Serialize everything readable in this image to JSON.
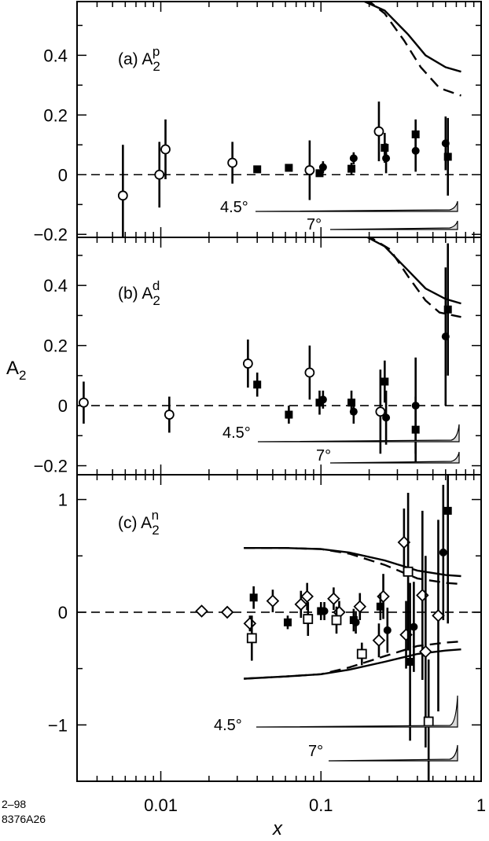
{
  "footnote": [
    "2–98",
    "8376A26"
  ],
  "ylabel": "A",
  "ylabel_sub": "2",
  "xlabel": "x",
  "x_axis": {
    "scale": "log",
    "range": [
      0.003,
      1.0
    ],
    "ticks": [
      0.01,
      0.1,
      1
    ],
    "tick_labels": [
      "0.01",
      "0.1",
      "1"
    ]
  },
  "chart_data": [
    {
      "type": "scatter",
      "panel": "a",
      "label": "(a)",
      "symbol": "A",
      "sub": "2",
      "sup": "p",
      "ylim": [
        -0.21,
        0.58
      ],
      "yticks": [
        -0.2,
        0,
        0.2,
        0.4
      ],
      "ytick_labels": [
        "−0.2",
        "0",
        "0.2",
        "0.4"
      ],
      "angle_labels": [
        "4.5°",
        "7°"
      ],
      "series": [
        {
          "marker": "open-circle",
          "points": [
            {
              "x": 0.0058,
              "y": -0.07,
              "err": 0.17
            },
            {
              "x": 0.0098,
              "y": 0.0,
              "err": 0.11
            },
            {
              "x": 0.0107,
              "y": 0.085,
              "err": 0.1
            },
            {
              "x": 0.028,
              "y": 0.04,
              "err": 0.07
            },
            {
              "x": 0.085,
              "y": 0.015,
              "err": 0.1
            },
            {
              "x": 0.23,
              "y": 0.145,
              "err": 0.1
            }
          ]
        },
        {
          "marker": "filled-square",
          "points": [
            {
              "x": 0.04,
              "y": 0.018,
              "err": 0.0
            },
            {
              "x": 0.063,
              "y": 0.023,
              "err": 0.0
            },
            {
              "x": 0.098,
              "y": 0.005,
              "err": 0.0
            },
            {
              "x": 0.155,
              "y": 0.02,
              "err": 0.02
            },
            {
              "x": 0.25,
              "y": 0.09,
              "err": 0.05
            },
            {
              "x": 0.39,
              "y": 0.135,
              "err": 0.05
            },
            {
              "x": 0.62,
              "y": 0.06,
              "err": 0.13
            }
          ]
        },
        {
          "marker": "filled-circle",
          "points": [
            {
              "x": 0.103,
              "y": 0.025,
              "err": 0.02
            },
            {
              "x": 0.16,
              "y": 0.055,
              "err": 0.02
            },
            {
              "x": 0.255,
              "y": 0.055,
              "err": 0.05
            },
            {
              "x": 0.39,
              "y": 0.08,
              "err": 0.07
            },
            {
              "x": 0.6,
              "y": 0.105,
              "err": 0.09
            }
          ]
        }
      ],
      "curves": [
        {
          "style": "solid",
          "points": [
            [
              0.17,
              0.59
            ],
            [
              0.25,
              0.55
            ],
            [
              0.35,
              0.47
            ],
            [
              0.45,
              0.4
            ],
            [
              0.6,
              0.36
            ],
            [
              0.75,
              0.345
            ]
          ]
        },
        {
          "style": "dashed",
          "points": [
            [
              0.19,
              0.59
            ],
            [
              0.25,
              0.54
            ],
            [
              0.33,
              0.45
            ],
            [
              0.42,
              0.36
            ],
            [
              0.55,
              0.29
            ],
            [
              0.75,
              0.265
            ]
          ]
        }
      ]
    },
    {
      "type": "scatter",
      "panel": "b",
      "label": "(b)",
      "symbol": "A",
      "sub": "2",
      "sup": "d",
      "ylim": [
        -0.23,
        0.56
      ],
      "yticks": [
        -0.2,
        0,
        0.2,
        0.4
      ],
      "ytick_labels": [
        "−0.2",
        "0",
        "0.2",
        "0.4"
      ],
      "angle_labels": [
        "4.5°",
        "7°"
      ],
      "series": [
        {
          "marker": "open-circle",
          "points": [
            {
              "x": 0.0033,
              "y": 0.01,
              "err": 0.07
            },
            {
              "x": 0.0113,
              "y": -0.03,
              "err": 0.06
            },
            {
              "x": 0.035,
              "y": 0.14,
              "err": 0.08
            },
            {
              "x": 0.085,
              "y": 0.11,
              "err": 0.09
            },
            {
              "x": 0.235,
              "y": -0.02,
              "err": 0.14
            }
          ]
        },
        {
          "marker": "filled-square",
          "points": [
            {
              "x": 0.04,
              "y": 0.07,
              "err": 0.04
            },
            {
              "x": 0.063,
              "y": -0.03,
              "err": 0.03
            },
            {
              "x": 0.098,
              "y": 0.01,
              "err": 0.04
            },
            {
              "x": 0.155,
              "y": 0.01,
              "err": 0.04
            },
            {
              "x": 0.25,
              "y": 0.08,
              "err": 0.07
            },
            {
              "x": 0.39,
              "y": -0.08,
              "err": 0.11
            },
            {
              "x": 0.62,
              "y": 0.32,
              "err": 0.22
            }
          ]
        },
        {
          "marker": "filled-circle",
          "points": [
            {
              "x": 0.103,
              "y": 0.02,
              "err": 0.03
            },
            {
              "x": 0.16,
              "y": -0.02,
              "err": 0.04
            },
            {
              "x": 0.255,
              "y": -0.04,
              "err": 0.09
            },
            {
              "x": 0.39,
              "y": 0.0,
              "err": 0.16
            },
            {
              "x": 0.6,
              "y": 0.23,
              "err": 0.23
            }
          ]
        }
      ],
      "curves": [
        {
          "style": "solid",
          "points": [
            [
              0.18,
              0.57
            ],
            [
              0.25,
              0.53
            ],
            [
              0.35,
              0.45
            ],
            [
              0.45,
              0.39
            ],
            [
              0.6,
              0.355
            ],
            [
              0.75,
              0.34
            ]
          ]
        },
        {
          "style": "dashed",
          "points": [
            [
              0.19,
              0.57
            ],
            [
              0.27,
              0.52
            ],
            [
              0.35,
              0.43
            ],
            [
              0.45,
              0.35
            ],
            [
              0.55,
              0.31
            ],
            [
              0.75,
              0.295
            ]
          ]
        }
      ]
    },
    {
      "type": "scatter",
      "panel": "c",
      "label": "(c)",
      "symbol": "A",
      "sub": "2",
      "sup": "n",
      "ylim": [
        -1.5,
        1.22
      ],
      "yticks": [
        -1,
        0,
        1
      ],
      "ytick_labels": [
        "−1",
        "0",
        "1"
      ],
      "angle_labels": [
        "4.5°",
        "7°"
      ],
      "series": [
        {
          "marker": "open-diamond",
          "points": [
            {
              "x": 0.018,
              "y": 0.01,
              "err": 0.04
            },
            {
              "x": 0.026,
              "y": 0.0,
              "err": 0.0
            },
            {
              "x": 0.036,
              "y": -0.1,
              "err": 0.07
            },
            {
              "x": 0.05,
              "y": 0.1,
              "err": 0.1
            },
            {
              "x": 0.075,
              "y": 0.07,
              "err": 0.12
            },
            {
              "x": 0.082,
              "y": 0.14,
              "err": 0.12
            },
            {
              "x": 0.12,
              "y": 0.12,
              "err": 0.1
            },
            {
              "x": 0.13,
              "y": 0.0,
              "err": 0.1
            },
            {
              "x": 0.175,
              "y": 0.05,
              "err": 0.12
            },
            {
              "x": 0.23,
              "y": -0.25,
              "err": 0.15
            },
            {
              "x": 0.245,
              "y": 0.14,
              "err": 0.2
            },
            {
              "x": 0.33,
              "y": 0.62,
              "err": 0.3
            },
            {
              "x": 0.34,
              "y": -0.2,
              "err": 0.3
            },
            {
              "x": 0.43,
              "y": 0.15,
              "err": 0.75
            },
            {
              "x": 0.45,
              "y": -0.35,
              "err": 0.85
            },
            {
              "x": 0.54,
              "y": -0.03,
              "err": 0.85
            }
          ]
        },
        {
          "marker": "open-square",
          "points": [
            {
              "x": 0.037,
              "y": -0.23,
              "err": 0.2
            },
            {
              "x": 0.083,
              "y": -0.06,
              "err": 0.15
            },
            {
              "x": 0.125,
              "y": -0.07,
              "err": 0.12
            },
            {
              "x": 0.18,
              "y": -0.37,
              "err": 0.1
            },
            {
              "x": 0.35,
              "y": 0.36,
              "err": 0.7
            },
            {
              "x": 0.47,
              "y": -0.97,
              "err": 0.55
            }
          ]
        },
        {
          "marker": "filled-square",
          "points": [
            {
              "x": 0.038,
              "y": 0.13,
              "err": 0.1
            },
            {
              "x": 0.062,
              "y": -0.09,
              "err": 0.06
            },
            {
              "x": 0.1,
              "y": 0.01,
              "err": 0.08
            },
            {
              "x": 0.16,
              "y": -0.07,
              "err": 0.1
            },
            {
              "x": 0.235,
              "y": 0.05,
              "err": 0.12
            },
            {
              "x": 0.36,
              "y": -0.44,
              "err": 0.7
            },
            {
              "x": 0.62,
              "y": 0.9,
              "err": 1.0
            }
          ]
        },
        {
          "marker": "filled-circle",
          "points": [
            {
              "x": 0.105,
              "y": 0.01,
              "err": 0.08
            },
            {
              "x": 0.165,
              "y": -0.09,
              "err": 0.1
            },
            {
              "x": 0.26,
              "y": -0.16,
              "err": 0.2
            },
            {
              "x": 0.38,
              "y": -0.13,
              "err": 0.4
            },
            {
              "x": 0.58,
              "y": 0.53,
              "err": 0.6
            }
          ]
        }
      ],
      "curves": [
        {
          "style": "solid",
          "points": [
            [
              0.033,
              0.57
            ],
            [
              0.06,
              0.57
            ],
            [
              0.1,
              0.56
            ],
            [
              0.15,
              0.53
            ],
            [
              0.25,
              0.46
            ],
            [
              0.4,
              0.37
            ],
            [
              0.6,
              0.33
            ],
            [
              0.75,
              0.32
            ]
          ]
        },
        {
          "style": "dashed",
          "points": [
            [
              0.033,
              0.57
            ],
            [
              0.06,
              0.57
            ],
            [
              0.1,
              0.56
            ],
            [
              0.15,
              0.52
            ],
            [
              0.25,
              0.42
            ],
            [
              0.4,
              0.3
            ],
            [
              0.6,
              0.26
            ],
            [
              0.75,
              0.25
            ]
          ]
        },
        {
          "style": "solid",
          "points": [
            [
              0.033,
              -0.59
            ],
            [
              0.06,
              -0.57
            ],
            [
              0.1,
              -0.55
            ],
            [
              0.15,
              -0.51
            ],
            [
              0.25,
              -0.44
            ],
            [
              0.4,
              -0.37
            ],
            [
              0.6,
              -0.34
            ],
            [
              0.75,
              -0.33
            ]
          ]
        },
        {
          "style": "dashed",
          "points": [
            [
              0.033,
              -0.59
            ],
            [
              0.06,
              -0.57
            ],
            [
              0.1,
              -0.55
            ],
            [
              0.15,
              -0.49
            ],
            [
              0.25,
              -0.39
            ],
            [
              0.4,
              -0.3
            ],
            [
              0.6,
              -0.27
            ],
            [
              0.75,
              -0.26
            ]
          ]
        }
      ]
    }
  ]
}
